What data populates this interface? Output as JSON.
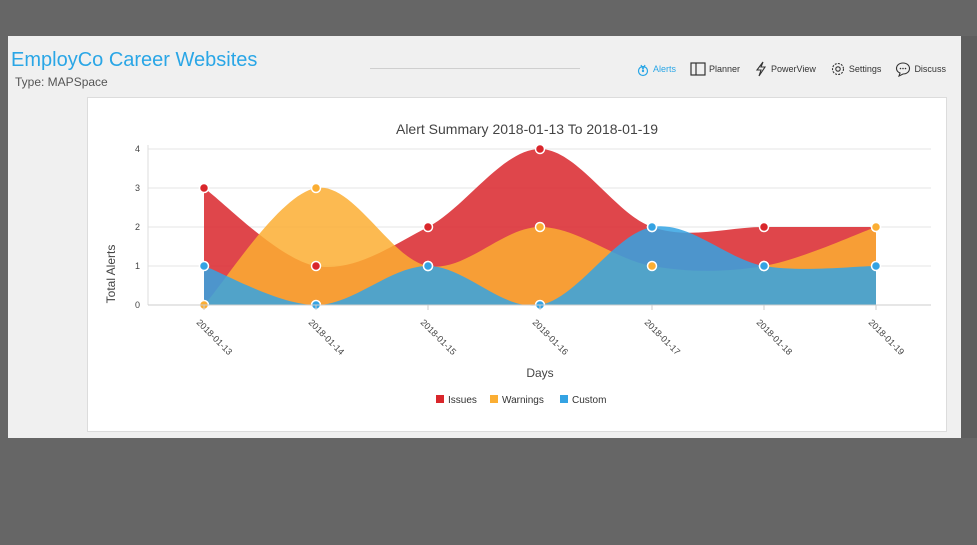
{
  "header": {
    "title": "EmployCo Career Websites",
    "type_label": "Type: MAPSpace"
  },
  "nav": {
    "items": [
      {
        "label": "Alerts",
        "icon": "alert-icon",
        "active": true
      },
      {
        "label": "Planner",
        "icon": "planner-icon",
        "active": false
      },
      {
        "label": "PowerView",
        "icon": "lightning-icon",
        "active": false
      },
      {
        "label": "Settings",
        "icon": "gear-icon",
        "active": false
      },
      {
        "label": "Discuss",
        "icon": "chat-icon",
        "active": false
      }
    ]
  },
  "chart_data": {
    "type": "area",
    "title": "Alert Summary 2018-01-13 To 2018-01-19",
    "xlabel": "Days",
    "ylabel": "Total Alerts",
    "categories": [
      "2018-01-13",
      "2018-01-14",
      "2018-01-15",
      "2018-01-16",
      "2018-01-17",
      "2018-01-18",
      "2018-01-19"
    ],
    "ylim": [
      0,
      4
    ],
    "yticks": [
      0,
      1,
      2,
      3,
      4
    ],
    "grid": true,
    "legend_position": "bottom-center",
    "series": [
      {
        "name": "Issues",
        "color": "#d9262b",
        "values": [
          3,
          1,
          2,
          4,
          2,
          2,
          2
        ]
      },
      {
        "name": "Warnings",
        "color": "#fbae33",
        "values": [
          0,
          3,
          1,
          2,
          1,
          1,
          2
        ]
      },
      {
        "name": "Custom",
        "color": "#34a3e3",
        "values": [
          1,
          0,
          1,
          0,
          2,
          1,
          1
        ]
      }
    ]
  }
}
